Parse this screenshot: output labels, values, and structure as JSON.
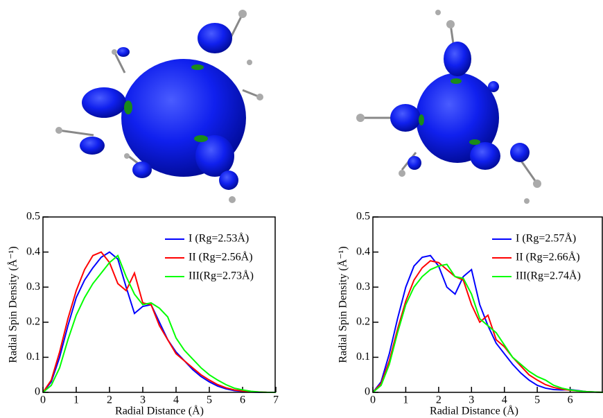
{
  "chart_data": [
    {
      "type": "line",
      "xlabel": "Radial Distance (Å)",
      "ylabel": "Radial Spin Density (Å⁻¹)",
      "x": [
        0,
        0.25,
        0.5,
        0.75,
        1,
        1.25,
        1.5,
        1.75,
        2,
        2.25,
        2.5,
        2.75,
        3,
        3.25,
        3.5,
        3.75,
        4,
        4.25,
        4.5,
        4.75,
        5,
        5.25,
        5.5,
        5.75,
        6,
        6.25,
        6.5,
        6.75,
        7
      ],
      "xlim": [
        0,
        7
      ],
      "xticks": [
        0,
        1,
        2,
        3,
        4,
        5,
        6,
        7
      ],
      "ylim": [
        0,
        0.5
      ],
      "yticks": [
        0,
        0.1,
        0.2,
        0.3,
        0.4,
        0.5
      ],
      "legend": "upper right",
      "series": [
        {
          "name": "I  (Rg=2.53Å)",
          "color": "#0000ff",
          "values": [
            0,
            0.03,
            0.1,
            0.19,
            0.27,
            0.32,
            0.355,
            0.385,
            0.4,
            0.38,
            0.3,
            0.225,
            0.245,
            0.25,
            0.2,
            0.15,
            0.115,
            0.09,
            0.065,
            0.045,
            0.03,
            0.018,
            0.01,
            0.005,
            0.003,
            0.001,
            0,
            0,
            0
          ]
        },
        {
          "name": "II (Rg=2.56Å)",
          "color": "#ff0000",
          "values": [
            0,
            0.035,
            0.115,
            0.21,
            0.29,
            0.35,
            0.39,
            0.4,
            0.37,
            0.31,
            0.29,
            0.34,
            0.255,
            0.25,
            0.19,
            0.15,
            0.11,
            0.09,
            0.07,
            0.05,
            0.035,
            0.022,
            0.013,
            0.007,
            0.004,
            0.002,
            0.001,
            0,
            0
          ]
        },
        {
          "name": "III(Rg=2.73Å)",
          "color": "#00ff00",
          "values": [
            0,
            0.02,
            0.07,
            0.15,
            0.22,
            0.27,
            0.31,
            0.34,
            0.37,
            0.39,
            0.33,
            0.28,
            0.25,
            0.255,
            0.24,
            0.215,
            0.155,
            0.12,
            0.095,
            0.07,
            0.05,
            0.035,
            0.022,
            0.012,
            0.007,
            0.003,
            0.001,
            0,
            0
          ]
        }
      ]
    },
    {
      "type": "line",
      "xlabel": "Radial Distance (Å)",
      "ylabel": "Radial Spin Density (Å⁻¹)",
      "x": [
        0,
        0.25,
        0.5,
        0.75,
        1,
        1.25,
        1.5,
        1.75,
        2,
        2.25,
        2.5,
        2.75,
        3,
        3.25,
        3.5,
        3.75,
        4,
        4.25,
        4.5,
        4.75,
        5,
        5.25,
        5.5,
        5.75,
        6,
        6.25,
        6.5,
        6.75,
        7
      ],
      "xlim": [
        0,
        7
      ],
      "xticks": [
        0,
        1,
        2,
        3,
        4,
        5,
        6
      ],
      "ylim": [
        0,
        0.5
      ],
      "yticks": [
        0,
        0.1,
        0.2,
        0.3,
        0.4,
        0.5
      ],
      "legend": "upper right",
      "series": [
        {
          "name": "I  (Rg=2.57Å)",
          "color": "#0000ff",
          "values": [
            0,
            0.03,
            0.11,
            0.21,
            0.3,
            0.36,
            0.385,
            0.39,
            0.36,
            0.3,
            0.28,
            0.33,
            0.35,
            0.25,
            0.19,
            0.14,
            0.11,
            0.08,
            0.055,
            0.035,
            0.02,
            0.012,
            0.008,
            0.007,
            0.008,
            0.005,
            0.002,
            0.001,
            0
          ]
        },
        {
          "name": "II (Rg=2.66Å)",
          "color": "#ff0000",
          "values": [
            0,
            0.025,
            0.09,
            0.18,
            0.26,
            0.32,
            0.355,
            0.375,
            0.37,
            0.35,
            0.33,
            0.32,
            0.25,
            0.2,
            0.22,
            0.15,
            0.13,
            0.1,
            0.075,
            0.05,
            0.035,
            0.022,
            0.014,
            0.009,
            0.006,
            0.004,
            0.002,
            0.001,
            0
          ]
        },
        {
          "name": "III(Rg=2.74Å)",
          "color": "#00ff00",
          "values": [
            0,
            0.02,
            0.08,
            0.17,
            0.25,
            0.3,
            0.33,
            0.35,
            0.36,
            0.365,
            0.33,
            0.325,
            0.28,
            0.21,
            0.19,
            0.17,
            0.135,
            0.1,
            0.08,
            0.06,
            0.045,
            0.035,
            0.02,
            0.012,
            0.007,
            0.004,
            0.002,
            0.001,
            0
          ]
        }
      ]
    }
  ]
}
